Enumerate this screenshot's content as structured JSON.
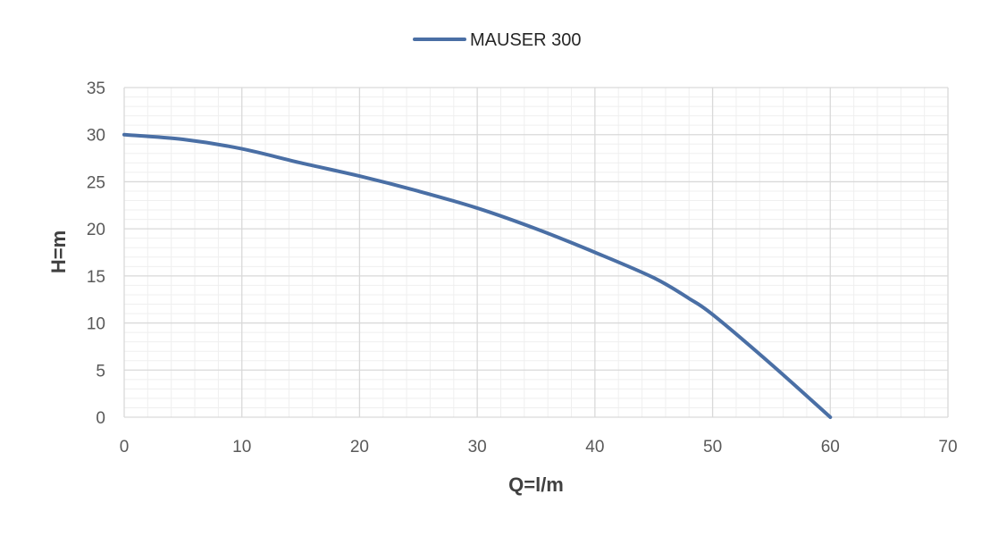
{
  "chart_data": {
    "type": "line",
    "xlabel": "Q=l/m",
    "ylabel": "H=m",
    "xlim": [
      0,
      70
    ],
    "ylim": [
      0,
      35
    ],
    "x_ticks": [
      0,
      10,
      20,
      30,
      40,
      50,
      60,
      70
    ],
    "y_ticks": [
      0,
      5,
      10,
      15,
      20,
      25,
      30,
      35
    ],
    "grid": true,
    "minor_grid": true,
    "legend_position": "top-center",
    "series": [
      {
        "name": "MAUSER 300",
        "color": "#4a6fa5",
        "x": [
          0,
          5,
          10,
          15,
          20,
          25,
          30,
          35,
          40,
          45,
          48,
          50,
          55,
          60
        ],
        "y": [
          30,
          29.5,
          28.5,
          27,
          25.6,
          24,
          22.2,
          20,
          17.5,
          14.8,
          12.6,
          10.9,
          5.6,
          0
        ]
      }
    ]
  }
}
